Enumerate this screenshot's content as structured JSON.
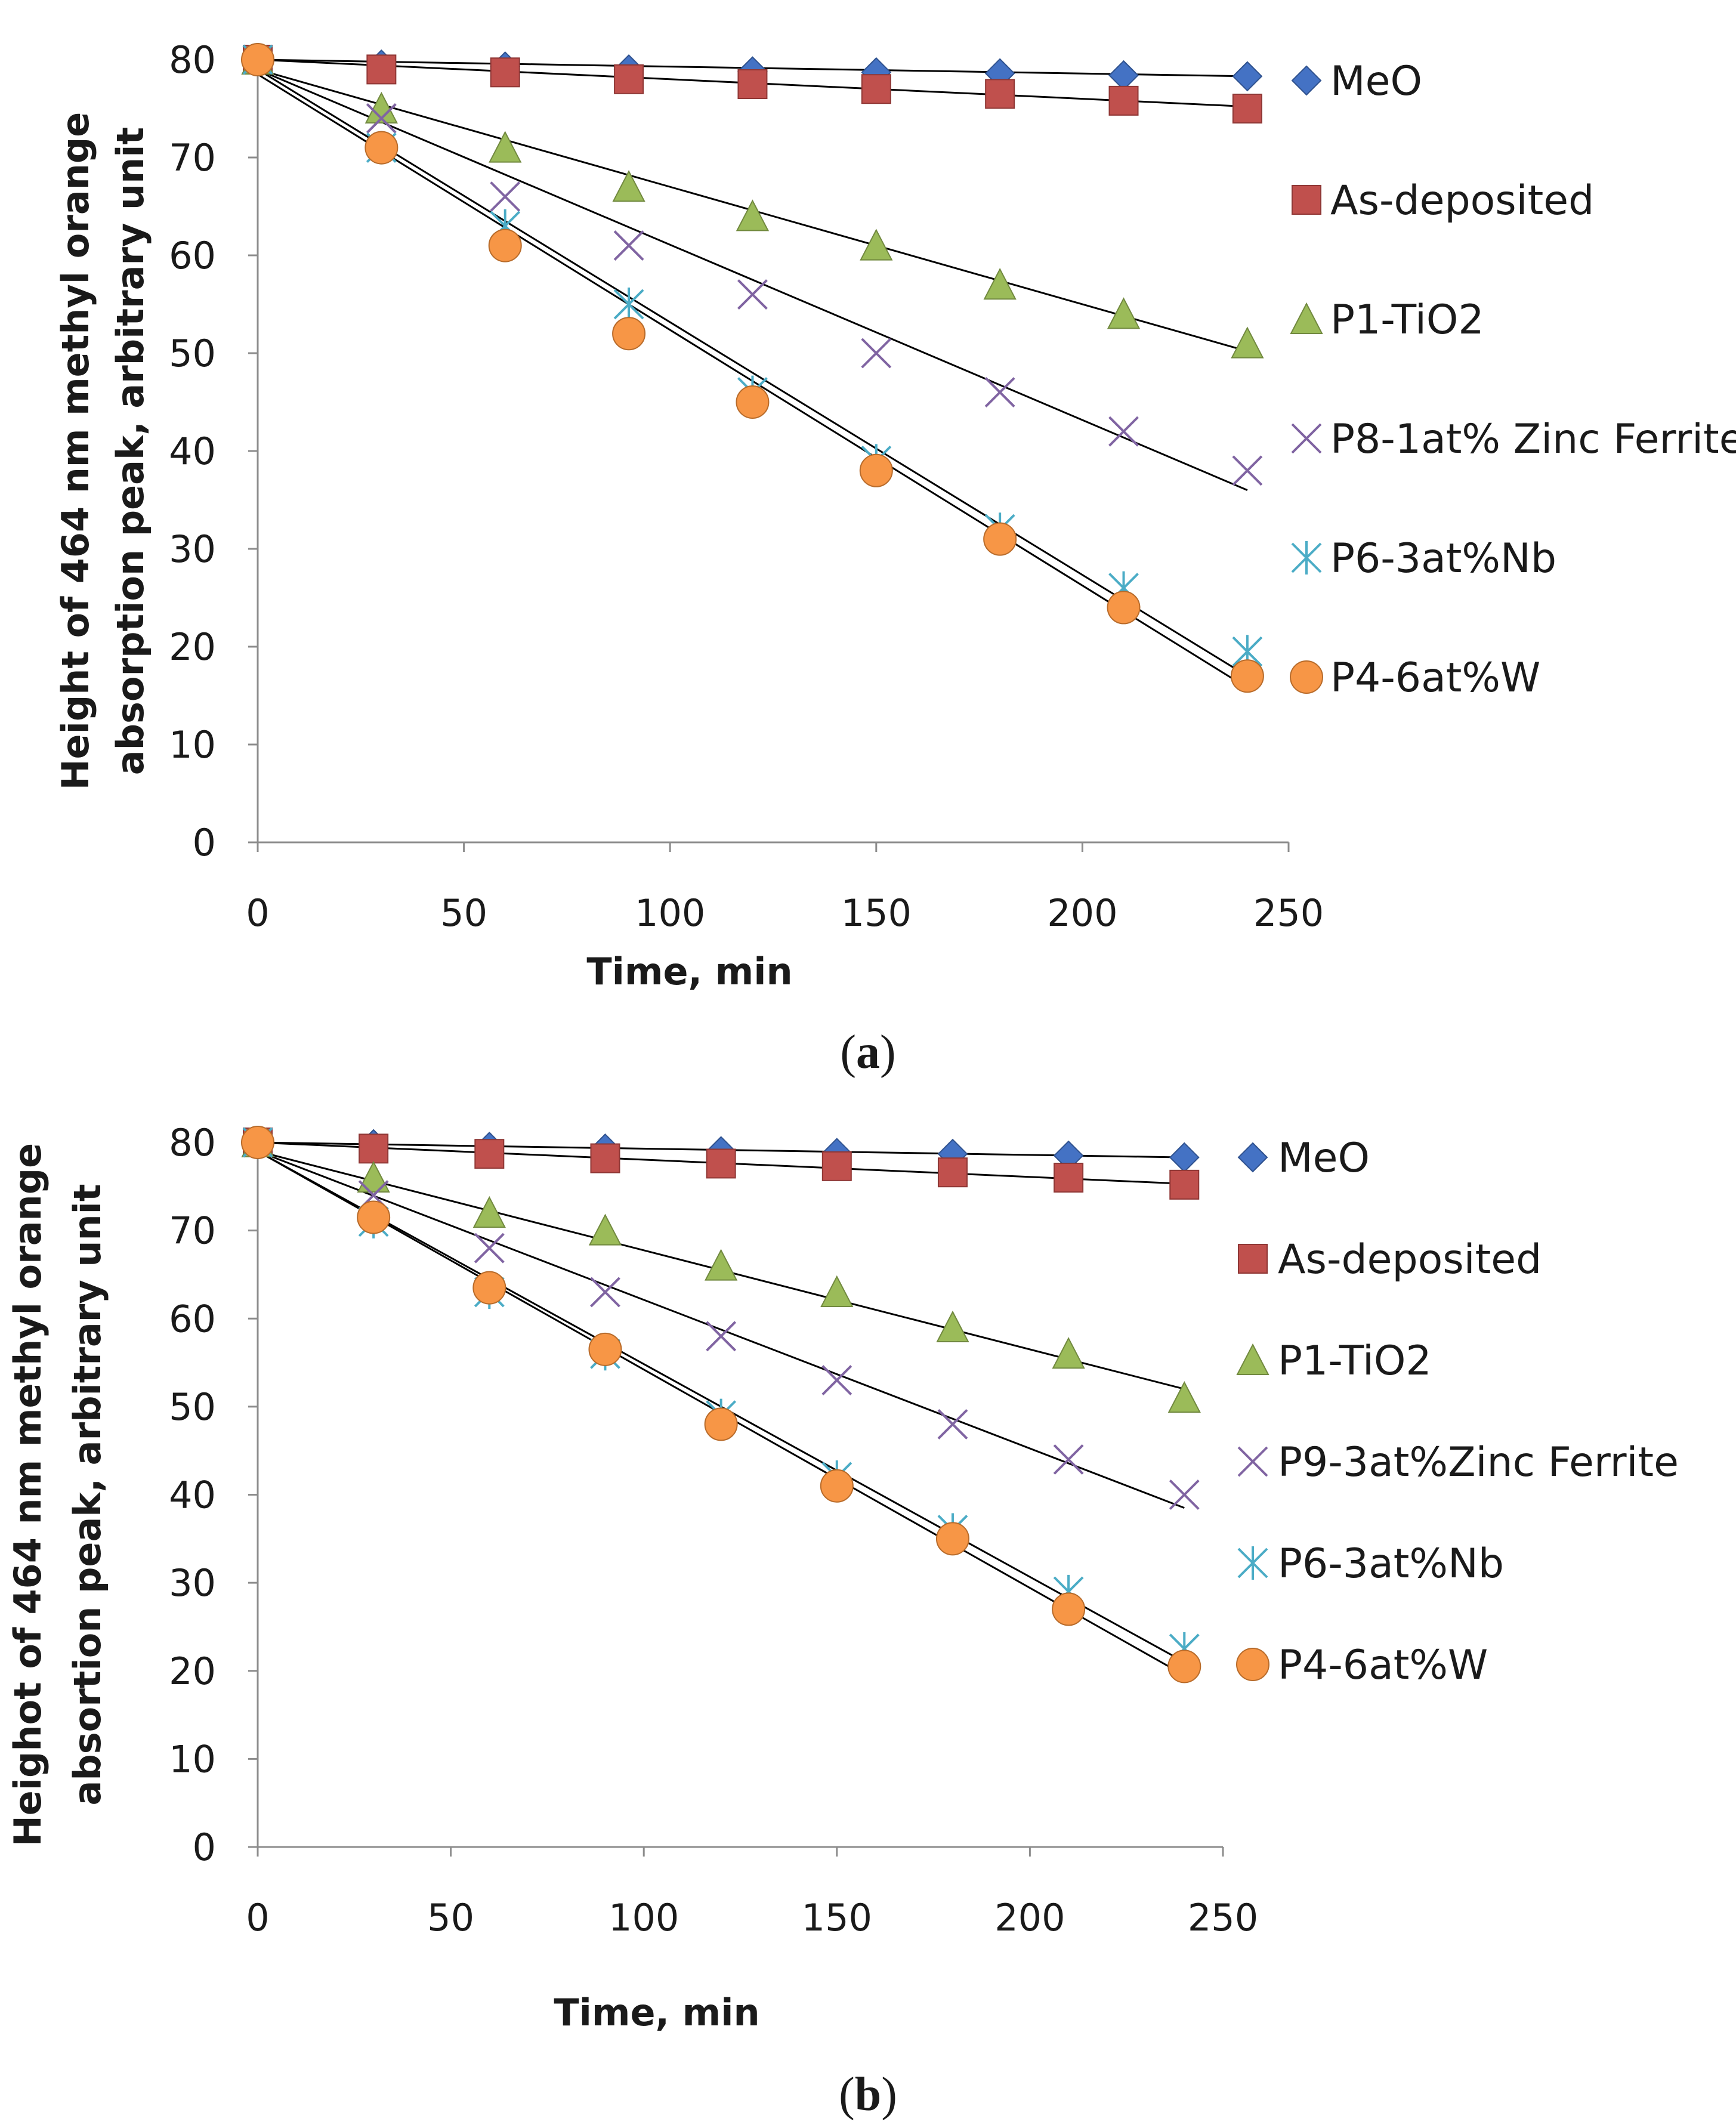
{
  "chart_data": [
    {
      "type": "scatter",
      "panel_label": "a",
      "xlabel": "Time, min",
      "ylabel_line1": "Height of 464 nm methyl orange",
      "ylabel_line2": "absorption peak, arbitrary unit",
      "xlim": [
        0,
        250
      ],
      "ylim": [
        0,
        80
      ],
      "xticks": [
        0,
        50,
        100,
        150,
        200,
        250
      ],
      "yticks": [
        0,
        10,
        20,
        30,
        40,
        50,
        60,
        70,
        80
      ],
      "grid": false,
      "legend_position": "right",
      "x": [
        0,
        30,
        60,
        90,
        120,
        150,
        180,
        210,
        240
      ],
      "series": [
        {
          "name": "MeO",
          "marker": "diamond",
          "color": "#4472C4",
          "values": [
            80,
            79.5,
            79.3,
            79,
            78.8,
            78.7,
            78.6,
            78.4,
            78.3
          ],
          "fit": [
            80,
            78.3
          ]
        },
        {
          "name": "As-deposited",
          "marker": "square",
          "color": "#C0504D",
          "values": [
            80,
            79,
            78.7,
            78,
            77.5,
            77,
            76.5,
            75.8,
            75
          ],
          "fit": [
            80,
            75.2
          ]
        },
        {
          "name": "P1-TiO2",
          "marker": "triangle",
          "color": "#9BBB59",
          "values": [
            80,
            75,
            71,
            67,
            64,
            61,
            57,
            54,
            51
          ],
          "fit": [
            79,
            50.2
          ]
        },
        {
          "name": "P8-1at% Zinc Ferrite",
          "marker": "x",
          "color": "#8064A2",
          "values": [
            80,
            74,
            66,
            61,
            56,
            50,
            46,
            42,
            38
          ],
          "fit": [
            79,
            36
          ]
        },
        {
          "name": "P6-3at%Nb",
          "marker": "asterisk",
          "color": "#4BACC6",
          "values": [
            80,
            71,
            63,
            55,
            46,
            39,
            32,
            26,
            19.5
          ],
          "fit": [
            79,
            17
          ]
        },
        {
          "name": "P4-6at%W",
          "marker": "circle",
          "color": "#F79646",
          "values": [
            80,
            71,
            61,
            52,
            45,
            38,
            31,
            24,
            17
          ],
          "fit": [
            78.5,
            15.8
          ]
        }
      ]
    },
    {
      "type": "scatter",
      "panel_label": "b",
      "xlabel": "Time, min",
      "ylabel_line1": "Heighot of 464 nm methyl orange",
      "ylabel_line2": "absortion peak, arbitrary unit",
      "xlim": [
        0,
        250
      ],
      "ylim": [
        0,
        80
      ],
      "xticks": [
        0,
        50,
        100,
        150,
        200,
        250
      ],
      "yticks": [
        0,
        10,
        20,
        30,
        40,
        50,
        60,
        70,
        80
      ],
      "grid": false,
      "legend_position": "right",
      "x": [
        0,
        30,
        60,
        90,
        120,
        150,
        180,
        210,
        240
      ],
      "series": [
        {
          "name": "MeO",
          "marker": "diamond",
          "color": "#4472C4",
          "values": [
            80,
            79.8,
            79.5,
            79.3,
            79,
            78.8,
            78.7,
            78.5,
            78.3
          ],
          "fit": [
            80,
            78.3
          ]
        },
        {
          "name": "As-deposited",
          "marker": "square",
          "color": "#C0504D",
          "values": [
            80,
            79.3,
            78.7,
            78.2,
            77.6,
            77.3,
            76.6,
            76,
            75.2
          ],
          "fit": [
            80,
            75.3
          ]
        },
        {
          "name": "P1-TiO2",
          "marker": "triangle",
          "color": "#9BBB59",
          "values": [
            80,
            76,
            72,
            70,
            66,
            63,
            59,
            56,
            51
          ],
          "fit": [
            79,
            52
          ]
        },
        {
          "name": "P9-3at%Zinc Ferrite",
          "marker": "x",
          "color": "#8064A2",
          "values": [
            80,
            74,
            68,
            63,
            58,
            53,
            48,
            44,
            40
          ],
          "fit": [
            79,
            38.5
          ]
        },
        {
          "name": "P6-3at%Nb",
          "marker": "asterisk",
          "color": "#4BACC6",
          "values": [
            80,
            71,
            63,
            56,
            49,
            42,
            36,
            29,
            22.5
          ],
          "fit": [
            79,
            21
          ]
        },
        {
          "name": "P4-6at%W",
          "marker": "circle",
          "color": "#F79646",
          "values": [
            80,
            71.5,
            63.5,
            56.5,
            48,
            41,
            35,
            27,
            20.5
          ],
          "fit": [
            79,
            19.5
          ]
        }
      ]
    }
  ]
}
